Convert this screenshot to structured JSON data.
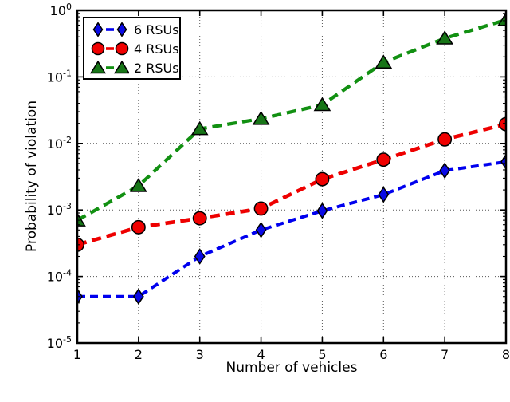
{
  "chart_data": {
    "type": "line",
    "title": "",
    "xlabel": "Number of vehicles",
    "ylabel": "Probability of violation",
    "x": [
      1,
      2,
      3,
      4,
      5,
      6,
      7,
      8
    ],
    "xlim": [
      1,
      8
    ],
    "ylim_exponents": [
      -5,
      0
    ],
    "yscale": "log",
    "xticks": [
      "1",
      "2",
      "3",
      "4",
      "5",
      "6",
      "7",
      "8"
    ],
    "ytick_base": "10",
    "ytick_exponents": [
      "0",
      "-1",
      "-2",
      "-3",
      "-4",
      "-5"
    ],
    "grid": "dotted at major ticks",
    "legend_position": "upper left",
    "series": [
      {
        "name": "6 RSUs",
        "marker": "diamond",
        "color": "#0000ee",
        "marker_color": "#0a0ae6",
        "values": [
          5e-05,
          5e-05,
          0.0002,
          0.0005,
          0.00097,
          0.0017,
          0.0039,
          0.0053
        ]
      },
      {
        "name": "4 RSUs",
        "marker": "circle",
        "color": "#ee0000",
        "marker_color": "#f00000",
        "values": [
          0.0003,
          0.00055,
          0.00075,
          0.00105,
          0.0029,
          0.0057,
          0.0115,
          0.0195
        ]
      },
      {
        "name": "2 RSUs",
        "marker": "triangle-up",
        "color": "#129012",
        "marker_color": "#177517",
        "values": [
          0.0007,
          0.0023,
          0.0165,
          0.0235,
          0.038,
          0.165,
          0.38,
          0.72
        ]
      }
    ]
  }
}
